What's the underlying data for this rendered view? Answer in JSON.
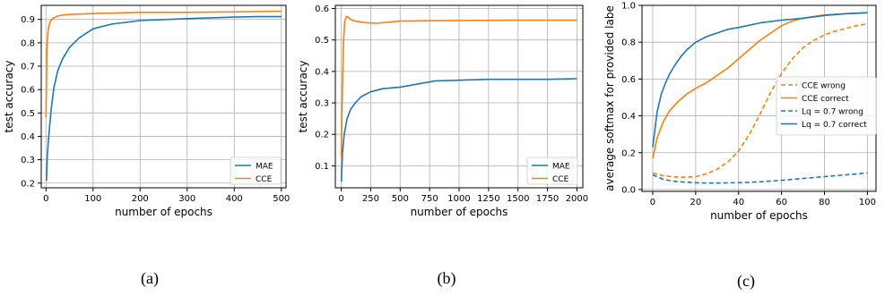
{
  "chart_data": [
    {
      "type": "line",
      "caption": "(a)",
      "xlabel": "number of epochs",
      "ylabel": "test accuracy",
      "xlim": [
        -10,
        510
      ],
      "ylim": [
        0.18,
        0.96
      ],
      "xticks": [
        0,
        100,
        200,
        300,
        400,
        500
      ],
      "yticks": [
        0.2,
        0.3,
        0.4,
        0.5,
        0.6,
        0.7,
        0.8,
        0.9
      ],
      "ytick_labels": [
        "0.2",
        "0.3",
        "0.4",
        "0.5",
        "0.6",
        "0.7",
        "0.8",
        "0.9"
      ],
      "grid": true,
      "legend_position": "lower-right",
      "series": [
        {
          "name": "MAE",
          "color": "#1f77b4",
          "x": [
            1,
            3,
            5,
            8,
            12,
            17,
            25,
            35,
            50,
            70,
            100,
            140,
            200,
            260,
            320,
            400,
            450,
            500
          ],
          "y": [
            0.21,
            0.32,
            0.38,
            0.45,
            0.53,
            0.61,
            0.68,
            0.73,
            0.78,
            0.82,
            0.86,
            0.88,
            0.895,
            0.9,
            0.905,
            0.91,
            0.912,
            0.912
          ]
        },
        {
          "name": "CCE",
          "color": "#ff7f0e",
          "x": [
            0,
            2,
            4,
            6,
            10,
            15,
            25,
            40,
            60,
            100,
            200,
            300,
            400,
            500
          ],
          "y": [
            0.48,
            0.77,
            0.84,
            0.87,
            0.895,
            0.905,
            0.915,
            0.92,
            0.922,
            0.925,
            0.93,
            0.93,
            0.932,
            0.935
          ]
        }
      ]
    },
    {
      "type": "line",
      "caption": "(b)",
      "xlabel": "number of epochs",
      "ylabel": "test accuracy",
      "xlim": [
        -50,
        2050
      ],
      "ylim": [
        0.03,
        0.61
      ],
      "xticks": [
        0,
        250,
        500,
        750,
        1000,
        1250,
        1500,
        1750,
        2000
      ],
      "yticks": [
        0.1,
        0.2,
        0.3,
        0.4,
        0.5,
        0.6
      ],
      "ytick_labels": [
        "0.1",
        "0.2",
        "0.3",
        "0.4",
        "0.5",
        "0.6"
      ],
      "grid": true,
      "legend_position": "lower-right",
      "series": [
        {
          "name": "MAE",
          "color": "#1f77b4",
          "x": [
            1,
            10,
            25,
            50,
            80,
            120,
            170,
            250,
            350,
            500,
            650,
            800,
            1000,
            1250,
            1500,
            1750,
            2000
          ],
          "y": [
            0.05,
            0.14,
            0.2,
            0.25,
            0.28,
            0.3,
            0.32,
            0.335,
            0.345,
            0.35,
            0.36,
            0.37,
            0.372,
            0.375,
            0.375,
            0.375,
            0.377
          ]
        },
        {
          "name": "CCE",
          "color": "#ff7f0e",
          "x": [
            0,
            10,
            20,
            30,
            45,
            60,
            80,
            120,
            200,
            300,
            500,
            1000,
            1500,
            2000
          ],
          "y": [
            0.13,
            0.35,
            0.5,
            0.56,
            0.575,
            0.572,
            0.565,
            0.56,
            0.555,
            0.553,
            0.56,
            0.562,
            0.563,
            0.563
          ]
        }
      ]
    },
    {
      "type": "line",
      "caption": "(c)",
      "xlabel": "number of epochs",
      "ylabel": "average softmax for provided labe",
      "xlim": [
        -5,
        104
      ],
      "ylim": [
        -0.01,
        1.0
      ],
      "xticks": [
        0,
        20,
        40,
        60,
        80,
        100
      ],
      "yticks": [
        0.0,
        0.2,
        0.4,
        0.6,
        0.8,
        1.0
      ],
      "ytick_labels": [
        "0.0",
        "0.2",
        "0.4",
        "0.6",
        "0.8",
        "1.0"
      ],
      "grid": true,
      "legend_position": "center-right",
      "series": [
        {
          "name": "CCE wrong",
          "color": "#ff7f0e",
          "dashed": true,
          "x": [
            0,
            5,
            10,
            15,
            20,
            25,
            30,
            35,
            40,
            45,
            50,
            55,
            60,
            65,
            70,
            75,
            80,
            85,
            90,
            95,
            100
          ],
          "y": [
            0.09,
            0.075,
            0.068,
            0.067,
            0.07,
            0.085,
            0.11,
            0.15,
            0.21,
            0.3,
            0.41,
            0.53,
            0.63,
            0.71,
            0.77,
            0.81,
            0.84,
            0.86,
            0.875,
            0.89,
            0.9
          ]
        },
        {
          "name": "CCE correct",
          "color": "#ff7f0e",
          "dashed": false,
          "x": [
            0,
            2,
            5,
            8,
            12,
            16,
            20,
            25,
            30,
            35,
            40,
            45,
            50,
            55,
            60,
            65,
            70,
            75,
            80,
            85,
            90,
            95,
            100
          ],
          "y": [
            0.17,
            0.28,
            0.37,
            0.43,
            0.48,
            0.52,
            0.55,
            0.58,
            0.62,
            0.66,
            0.71,
            0.76,
            0.81,
            0.85,
            0.89,
            0.915,
            0.93,
            0.94,
            0.948,
            0.952,
            0.955,
            0.957,
            0.96
          ]
        },
        {
          "name": "Lq = 0.7 wrong",
          "color": "#1f77b4",
          "dashed": true,
          "x": [
            0,
            5,
            10,
            15,
            20,
            25,
            30,
            40,
            50,
            60,
            70,
            80,
            90,
            100
          ],
          "y": [
            0.08,
            0.055,
            0.045,
            0.04,
            0.037,
            0.035,
            0.035,
            0.037,
            0.042,
            0.05,
            0.06,
            0.07,
            0.08,
            0.09
          ]
        },
        {
          "name": "Lq = 0.7 correct",
          "color": "#1f77b4",
          "dashed": false,
          "x": [
            0,
            2,
            4,
            6,
            8,
            10,
            13,
            16,
            20,
            25,
            30,
            35,
            40,
            50,
            60,
            70,
            80,
            90,
            100
          ],
          "y": [
            0.23,
            0.42,
            0.52,
            0.58,
            0.63,
            0.67,
            0.72,
            0.76,
            0.8,
            0.83,
            0.85,
            0.87,
            0.88,
            0.905,
            0.92,
            0.93,
            0.945,
            0.955,
            0.96
          ]
        }
      ]
    }
  ]
}
